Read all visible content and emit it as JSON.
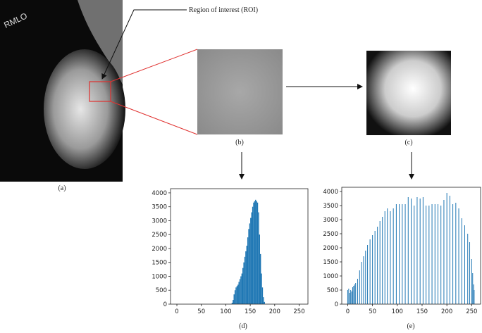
{
  "figure": {
    "annotation": "Region of interest (ROI)",
    "image_label": "RMLO",
    "panel_labels": [
      "(a)",
      "(b)",
      "(c)",
      "(d)",
      "(e)"
    ]
  },
  "chart_data": [
    {
      "type": "histogram",
      "color": "#1f77b4",
      "bins": [
        112,
        114,
        116,
        118,
        120,
        122,
        124,
        126,
        128,
        130,
        132,
        134,
        136,
        138,
        140,
        142,
        144,
        146,
        148,
        150,
        152,
        154,
        156,
        158,
        160,
        162,
        164,
        166,
        168,
        170,
        172,
        174,
        176,
        178,
        180
      ],
      "values": [
        50,
        150,
        350,
        500,
        600,
        650,
        700,
        800,
        900,
        1000,
        1100,
        1300,
        1500,
        1700,
        1900,
        2100,
        2400,
        2700,
        2900,
        3100,
        3300,
        3500,
        3650,
        3700,
        3750,
        3700,
        3650,
        3300,
        2500,
        1800,
        1100,
        600,
        250,
        80
      ],
      "xlim": [
        -13,
        268
      ],
      "xticks": [
        0,
        50,
        100,
        150,
        200,
        250
      ],
      "ylim": [
        0,
        4150
      ],
      "yticks": [
        0,
        500,
        1000,
        1500,
        2000,
        2500,
        3000,
        3500,
        4000
      ]
    },
    {
      "type": "spike",
      "color": "#1f77b4",
      "x": [
        0,
        2,
        4,
        6,
        8,
        10,
        12,
        14,
        16,
        20,
        24,
        28,
        32,
        36,
        40,
        45,
        50,
        55,
        60,
        65,
        70,
        75,
        80,
        86,
        92,
        98,
        104,
        110,
        116,
        122,
        128,
        134,
        140,
        146,
        152,
        158,
        164,
        170,
        176,
        182,
        188,
        194,
        200,
        206,
        212,
        218,
        224,
        230,
        236,
        242,
        246,
        250,
        252,
        254,
        255
      ],
      "values": [
        500,
        550,
        400,
        500,
        450,
        600,
        650,
        700,
        750,
        900,
        1200,
        1500,
        1700,
        1900,
        2100,
        2300,
        2450,
        2600,
        2750,
        2950,
        3100,
        3300,
        3400,
        3300,
        3400,
        3550,
        3550,
        3550,
        3550,
        3800,
        3750,
        3500,
        3800,
        3750,
        3800,
        3500,
        3500,
        3550,
        3550,
        3550,
        3500,
        3700,
        3950,
        3850,
        3550,
        3600,
        3400,
        3050,
        2800,
        2500,
        2200,
        1600,
        1100,
        700,
        500
      ],
      "xlim": [
        -12,
        268
      ],
      "xticks": [
        0,
        50,
        100,
        150,
        200,
        250
      ],
      "ylim": [
        0,
        4150
      ],
      "yticks": [
        0,
        500,
        1000,
        1500,
        2000,
        2500,
        3000,
        3500,
        4000
      ]
    }
  ]
}
